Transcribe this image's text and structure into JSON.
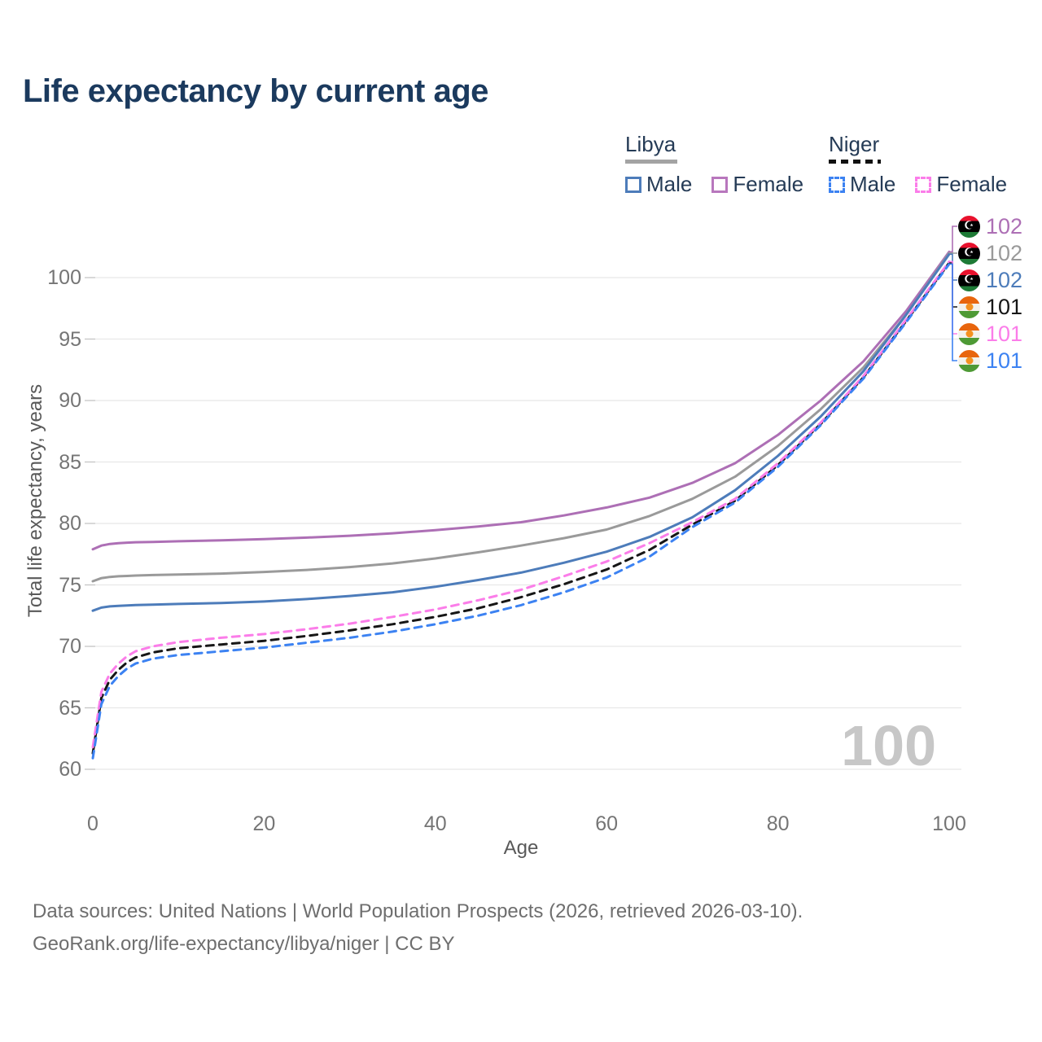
{
  "title": "Life expectancy by current age",
  "legend": {
    "groups": [
      {
        "id": "libya",
        "label": "Libya",
        "underline_style": "solid",
        "underline_color": "#a3a3a3",
        "items": [
          {
            "id": "libya-male",
            "label": "Male",
            "color": "#4d7cba",
            "dash": false
          },
          {
            "id": "libya-female",
            "label": "Female",
            "color": "#b877bd",
            "dash": false
          }
        ]
      },
      {
        "id": "niger",
        "label": "Niger",
        "underline_style": "dashed",
        "underline_color": "#111111",
        "items": [
          {
            "id": "niger-male",
            "label": "Male",
            "color": "#3c82f2",
            "dash": true
          },
          {
            "id": "niger-female",
            "label": "Female",
            "color": "#fb7de9",
            "dash": true
          }
        ]
      }
    ]
  },
  "chart_data": {
    "type": "line",
    "title": "Life expectancy by current age",
    "xlabel": "Age",
    "ylabel": "Total life expectancy, years",
    "xlim": [
      0,
      100
    ],
    "ylim": [
      60,
      103
    ],
    "x_ticks": [
      0,
      20,
      40,
      60,
      80,
      100
    ],
    "y_ticks": [
      60,
      65,
      70,
      75,
      80,
      85,
      90,
      95,
      100
    ],
    "grid": "horizontal",
    "legend_position": "top-right",
    "ages": [
      0,
      1,
      2,
      3,
      4,
      5,
      7,
      10,
      15,
      20,
      25,
      30,
      35,
      40,
      45,
      50,
      55,
      60,
      65,
      70,
      75,
      80,
      85,
      90,
      95,
      100
    ],
    "series": [
      {
        "id": "libya-female",
        "name": "Libya Female",
        "color": "#ad6fb5",
        "dash": false,
        "values": [
          77.9,
          78.2,
          78.33,
          78.4,
          78.44,
          78.47,
          78.5,
          78.55,
          78.62,
          78.72,
          78.85,
          79.0,
          79.2,
          79.45,
          79.75,
          80.1,
          80.65,
          81.3,
          82.1,
          83.3,
          84.9,
          87.2,
          90.0,
          93.2,
          97.3,
          102.1
        ]
      },
      {
        "id": "libya-both",
        "name": "Libya Both sexes",
        "color": "#9a9a9a",
        "dash": false,
        "values": [
          75.3,
          75.55,
          75.65,
          75.7,
          75.73,
          75.76,
          75.8,
          75.85,
          75.92,
          76.05,
          76.22,
          76.45,
          76.75,
          77.15,
          77.65,
          78.2,
          78.8,
          79.5,
          80.6,
          82.0,
          83.8,
          86.3,
          89.3,
          92.7,
          97.0,
          102.0
        ]
      },
      {
        "id": "libya-male",
        "name": "Libya Male",
        "color": "#4d7cba",
        "dash": false,
        "values": [
          72.9,
          73.15,
          73.25,
          73.3,
          73.33,
          73.36,
          73.4,
          73.45,
          73.52,
          73.65,
          73.85,
          74.1,
          74.4,
          74.85,
          75.4,
          76.0,
          76.8,
          77.7,
          78.9,
          80.5,
          82.7,
          85.5,
          88.7,
          92.4,
          97.0,
          101.9
        ]
      },
      {
        "id": "niger-both",
        "name": "Niger Both sexes",
        "color": "#161616",
        "dash": true,
        "values": [
          61.3,
          65.8,
          67.3,
          68.1,
          68.7,
          69.1,
          69.5,
          69.85,
          70.15,
          70.45,
          70.85,
          71.3,
          71.8,
          72.4,
          73.1,
          74.0,
          75.05,
          76.25,
          77.85,
          79.9,
          81.85,
          84.75,
          88.1,
          91.9,
          96.5,
          101.2
        ]
      },
      {
        "id": "niger-female",
        "name": "Niger Female",
        "color": "#fb7de9",
        "dash": true,
        "values": [
          61.8,
          66.3,
          67.8,
          68.6,
          69.2,
          69.6,
          70.0,
          70.35,
          70.7,
          71.0,
          71.4,
          71.85,
          72.4,
          73.0,
          73.75,
          74.6,
          75.7,
          76.9,
          78.4,
          80.1,
          82.0,
          84.9,
          88.2,
          92.0,
          96.6,
          101.3
        ]
      },
      {
        "id": "niger-male",
        "name": "Niger Male",
        "color": "#3c82f2",
        "dash": true,
        "values": [
          60.9,
          65.3,
          66.8,
          67.6,
          68.2,
          68.6,
          69.0,
          69.3,
          69.6,
          69.9,
          70.3,
          70.7,
          71.2,
          71.8,
          72.5,
          73.35,
          74.4,
          75.6,
          77.3,
          79.7,
          81.7,
          84.6,
          88.0,
          91.8,
          96.4,
          101.1
        ]
      }
    ]
  },
  "end_labels": [
    {
      "series": "libya-female",
      "flag": "libya-flag-icon",
      "value": "102",
      "color": "#ad6fb5"
    },
    {
      "series": "libya-both",
      "flag": "libya-flag-icon",
      "value": "102",
      "color": "#9a9a9a"
    },
    {
      "series": "libya-male",
      "flag": "libya-flag-icon",
      "value": "102",
      "color": "#4d7cba"
    },
    {
      "series": "niger-both",
      "flag": "niger-flag-icon",
      "value": "101",
      "color": "#161616"
    },
    {
      "series": "niger-female",
      "flag": "niger-flag-icon",
      "value": "101",
      "color": "#fb7de9"
    },
    {
      "series": "niger-male",
      "flag": "niger-flag-icon",
      "value": "101",
      "color": "#3c82f2"
    }
  ],
  "age_indicator": "100",
  "icons": {
    "libya_flag_emblem": "☪"
  },
  "footer": {
    "line1": "Data sources: United Nations | World Population Prospects (2026, retrieved 2026-03-10).",
    "line2": "GeoRank.org/life-expectancy/libya/niger | CC BY"
  },
  "colors": {
    "title": "#1b3a5e",
    "legend_text": "#253b56",
    "tick_text": "#757575",
    "axis_title_text": "#595959",
    "gridline": "#e8e8e8",
    "grid_stub": "#c6c6c6",
    "watermark": "#c7c7c7",
    "footer_text": "#6e6e6e"
  }
}
